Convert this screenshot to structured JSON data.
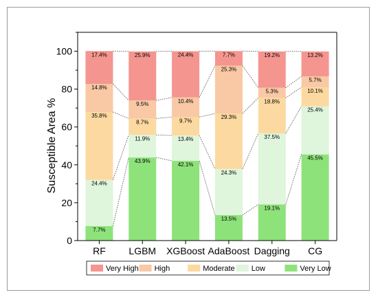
{
  "chart_data": {
    "type": "bar",
    "stacked": true,
    "ylabel": "Susceptible Area %",
    "xlabel": "",
    "title": "",
    "ylim": [
      0,
      110
    ],
    "yticks": [
      0,
      20,
      40,
      60,
      80,
      100
    ],
    "grid": false,
    "legend_position": "bottom",
    "categories": [
      "RF",
      "LGBM",
      "XGBoost",
      "AdaBoost",
      "Dagging",
      "CG"
    ],
    "series": [
      {
        "name": "Very Low",
        "color": "#8ee27a",
        "values": [
          7.7,
          43.9,
          42.1,
          13.5,
          19.1,
          45.5
        ],
        "labels": [
          "7.7%",
          "43.9%",
          "42.1%",
          "13.5%",
          "19.1%",
          "45.5%"
        ]
      },
      {
        "name": "Low",
        "color": "#dff5dc",
        "values": [
          24.4,
          11.9,
          13.4,
          24.3,
          37.5,
          25.4
        ],
        "labels": [
          "24.4%",
          "11.9%",
          "13.4%",
          "24.3%",
          "37.5%",
          "25.4%"
        ]
      },
      {
        "name": "Moderate",
        "color": "#fcd9a0",
        "values": [
          35.8,
          8.7,
          9.7,
          29.3,
          18.8,
          10.1
        ],
        "labels": [
          "35.8%",
          "8.7%",
          "9.7%",
          "29.3%",
          "18.8%",
          "10.1%"
        ]
      },
      {
        "name": "High",
        "color": "#f9c8a4",
        "values": [
          14.8,
          9.5,
          10.4,
          25.3,
          5.3,
          5.7
        ],
        "labels": [
          "14.8%",
          "9.5%",
          "10.4%",
          "25.3%",
          "5.3%",
          "5.7%"
        ]
      },
      {
        "name": "Very High",
        "color": "#f5958f",
        "values": [
          17.4,
          25.9,
          24.4,
          7.7,
          19.2,
          13.2
        ],
        "labels": [
          "17.4%",
          "25.9%",
          "24.4%",
          "7.7%",
          "19.2%",
          "13.2%"
        ]
      }
    ],
    "legend_order": [
      "Very High",
      "High",
      "Moderate",
      "Low",
      "Very Low"
    ]
  }
}
